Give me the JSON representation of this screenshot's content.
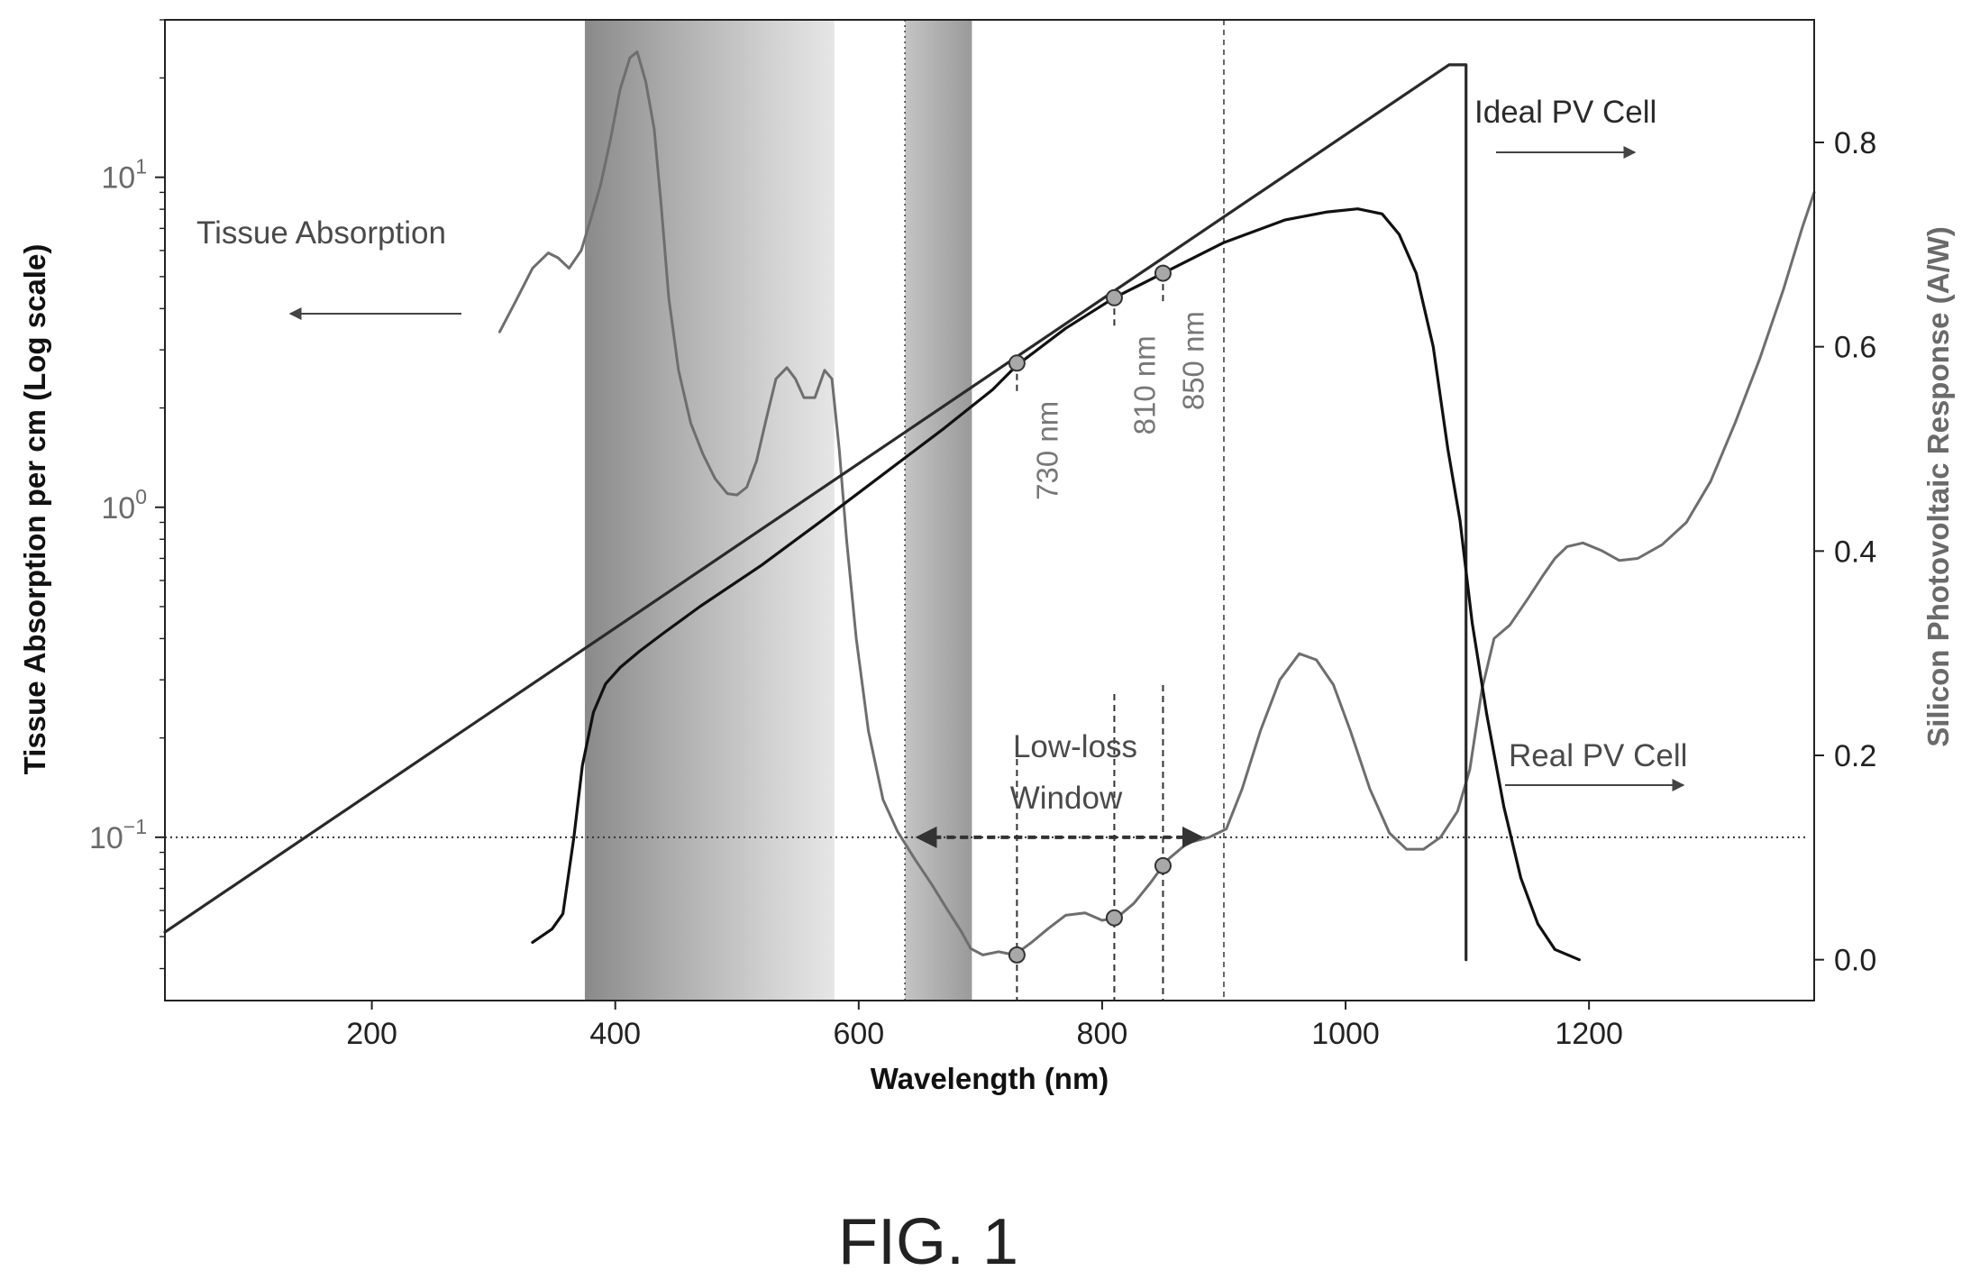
{
  "figure": {
    "caption": "FIG. 1"
  },
  "chart_data": {
    "type": "line",
    "xlabel": "Wavelength (nm)",
    "ylabel_left": "Tissue Absorption per cm (Log scale)",
    "ylabel_right": "Silicon Photovoltaic Response (A/W)",
    "x_ticks": [
      200,
      400,
      600,
      800,
      1000,
      1200
    ],
    "xlim": [
      30,
      1385
    ],
    "y_left_scale": "log",
    "y_left_ticks": [
      {
        "value": 0.1,
        "base": "10",
        "exp": "−1"
      },
      {
        "value": 1,
        "base": "10",
        "exp": "0"
      },
      {
        "value": 10,
        "base": "10",
        "exp": "1"
      }
    ],
    "y_left_lim": [
      0.032,
      30
    ],
    "y_right_ticks": [
      "0.0",
      "0.2",
      "0.4",
      "0.6",
      "0.8"
    ],
    "y_right_lim": [
      -0.04,
      0.92
    ],
    "shaded_bands": [
      {
        "x0": 375,
        "x1": 580,
        "color": "#8f8f8f"
      },
      {
        "x0": 638,
        "x1": 693,
        "color": "#9a9a9a"
      }
    ],
    "reference_line_left": 0.1,
    "vlines": [
      {
        "x": 638,
        "style": "dotted"
      },
      {
        "x": 900,
        "style": "dashed-fine"
      }
    ],
    "series": [
      {
        "name": "Tissue Absorption",
        "axis": "left",
        "color": "#6e6e6e",
        "points": [
          [
            305,
            3.4
          ],
          [
            318,
            4.2
          ],
          [
            332,
            5.3
          ],
          [
            345,
            5.9
          ],
          [
            353,
            5.7
          ],
          [
            362,
            5.3
          ],
          [
            372,
            6.0
          ],
          [
            380,
            7.5
          ],
          [
            388,
            9.5
          ],
          [
            396,
            13
          ],
          [
            404,
            18.5
          ],
          [
            412,
            23
          ],
          [
            418,
            24
          ],
          [
            425,
            19.5
          ],
          [
            432,
            14
          ],
          [
            438,
            8
          ],
          [
            444,
            4.3
          ],
          [
            452,
            2.6
          ],
          [
            462,
            1.8
          ],
          [
            472,
            1.45
          ],
          [
            482,
            1.22
          ],
          [
            492,
            1.1
          ],
          [
            500,
            1.09
          ],
          [
            508,
            1.15
          ],
          [
            516,
            1.38
          ],
          [
            524,
            1.85
          ],
          [
            532,
            2.45
          ],
          [
            541,
            2.65
          ],
          [
            548,
            2.45
          ],
          [
            555,
            2.15
          ],
          [
            564,
            2.15
          ],
          [
            572,
            2.6
          ],
          [
            578,
            2.45
          ],
          [
            584,
            1.5
          ],
          [
            590,
            0.8
          ],
          [
            598,
            0.4
          ],
          [
            608,
            0.21
          ],
          [
            620,
            0.13
          ],
          [
            632,
            0.104
          ],
          [
            646,
            0.086
          ],
          [
            660,
            0.072
          ],
          [
            672,
            0.061
          ],
          [
            684,
            0.052
          ],
          [
            692,
            0.046
          ],
          [
            702,
            0.044
          ],
          [
            715,
            0.045
          ],
          [
            728,
            0.044
          ],
          [
            742,
            0.048
          ],
          [
            756,
            0.053
          ],
          [
            770,
            0.058
          ],
          [
            786,
            0.059
          ],
          [
            800,
            0.056
          ],
          [
            812,
            0.057
          ],
          [
            826,
            0.063
          ],
          [
            840,
            0.073
          ],
          [
            853,
            0.085
          ],
          [
            870,
            0.096
          ],
          [
            888,
            0.1
          ],
          [
            902,
            0.106
          ],
          [
            915,
            0.14
          ],
          [
            930,
            0.21
          ],
          [
            946,
            0.3
          ],
          [
            962,
            0.36
          ],
          [
            976,
            0.345
          ],
          [
            990,
            0.29
          ],
          [
            1004,
            0.21
          ],
          [
            1020,
            0.14
          ],
          [
            1036,
            0.103
          ],
          [
            1050,
            0.092
          ],
          [
            1064,
            0.092
          ],
          [
            1078,
            0.1
          ],
          [
            1092,
            0.12
          ],
          [
            1102,
            0.16
          ],
          [
            1112,
            0.28
          ],
          [
            1122,
            0.4
          ],
          [
            1135,
            0.44
          ],
          [
            1150,
            0.53
          ],
          [
            1162,
            0.62
          ],
          [
            1172,
            0.7
          ],
          [
            1182,
            0.76
          ],
          [
            1195,
            0.78
          ],
          [
            1210,
            0.74
          ],
          [
            1225,
            0.69
          ],
          [
            1240,
            0.7
          ],
          [
            1260,
            0.77
          ],
          [
            1280,
            0.9
          ],
          [
            1300,
            1.2
          ],
          [
            1320,
            1.8
          ],
          [
            1340,
            2.8
          ],
          [
            1360,
            4.6
          ],
          [
            1375,
            7
          ],
          [
            1385,
            9
          ]
        ]
      },
      {
        "name": "Ideal PV Cell",
        "axis": "right",
        "color": "#2a2a2a",
        "points": [
          [
            30,
            0.027
          ],
          [
            1085,
            0.876
          ],
          [
            1099,
            0.876
          ],
          [
            1099,
            0.0
          ]
        ]
      },
      {
        "name": "Real PV Cell",
        "axis": "right",
        "color": "#111111",
        "points": [
          [
            332,
            0.017
          ],
          [
            348,
            0.03
          ],
          [
            357,
            0.045
          ],
          [
            366,
            0.12
          ],
          [
            373,
            0.19
          ],
          [
            382,
            0.242
          ],
          [
            392,
            0.27
          ],
          [
            404,
            0.286
          ],
          [
            420,
            0.302
          ],
          [
            440,
            0.32
          ],
          [
            470,
            0.346
          ],
          [
            520,
            0.386
          ],
          [
            570,
            0.43
          ],
          [
            620,
            0.475
          ],
          [
            670,
            0.52
          ],
          [
            710,
            0.558
          ],
          [
            730,
            0.582
          ],
          [
            770,
            0.618
          ],
          [
            810,
            0.648
          ],
          [
            850,
            0.672
          ],
          [
            900,
            0.702
          ],
          [
            950,
            0.724
          ],
          [
            985,
            0.732
          ],
          [
            1010,
            0.735
          ],
          [
            1030,
            0.73
          ],
          [
            1044,
            0.71
          ],
          [
            1058,
            0.672
          ],
          [
            1072,
            0.6
          ],
          [
            1084,
            0.5
          ],
          [
            1094,
            0.43
          ],
          [
            1104,
            0.33
          ],
          [
            1116,
            0.24
          ],
          [
            1130,
            0.15
          ],
          [
            1144,
            0.08
          ],
          [
            1158,
            0.035
          ],
          [
            1172,
            0.01
          ],
          [
            1192,
            0.0
          ]
        ]
      }
    ],
    "markers": [
      {
        "x": 730,
        "y": 0.584,
        "axis": "right",
        "label": "730 nm"
      },
      {
        "x": 810,
        "y": 0.648,
        "axis": "right",
        "label": "810 nm"
      },
      {
        "x": 850,
        "y": 0.672,
        "axis": "right",
        "label": "850 nm"
      },
      {
        "x": 730,
        "y": 0.044,
        "axis": "left"
      },
      {
        "x": 810,
        "y": 0.057,
        "axis": "left"
      },
      {
        "x": 850,
        "y": 0.082,
        "axis": "left"
      }
    ],
    "annotations": {
      "tissue": "Tissue Absorption",
      "ideal": "Ideal PV Cell",
      "real": "Real PV Cell",
      "window_line1": "Low-loss",
      "window_line2": "Window",
      "window_range": [
        650,
        880
      ]
    }
  }
}
